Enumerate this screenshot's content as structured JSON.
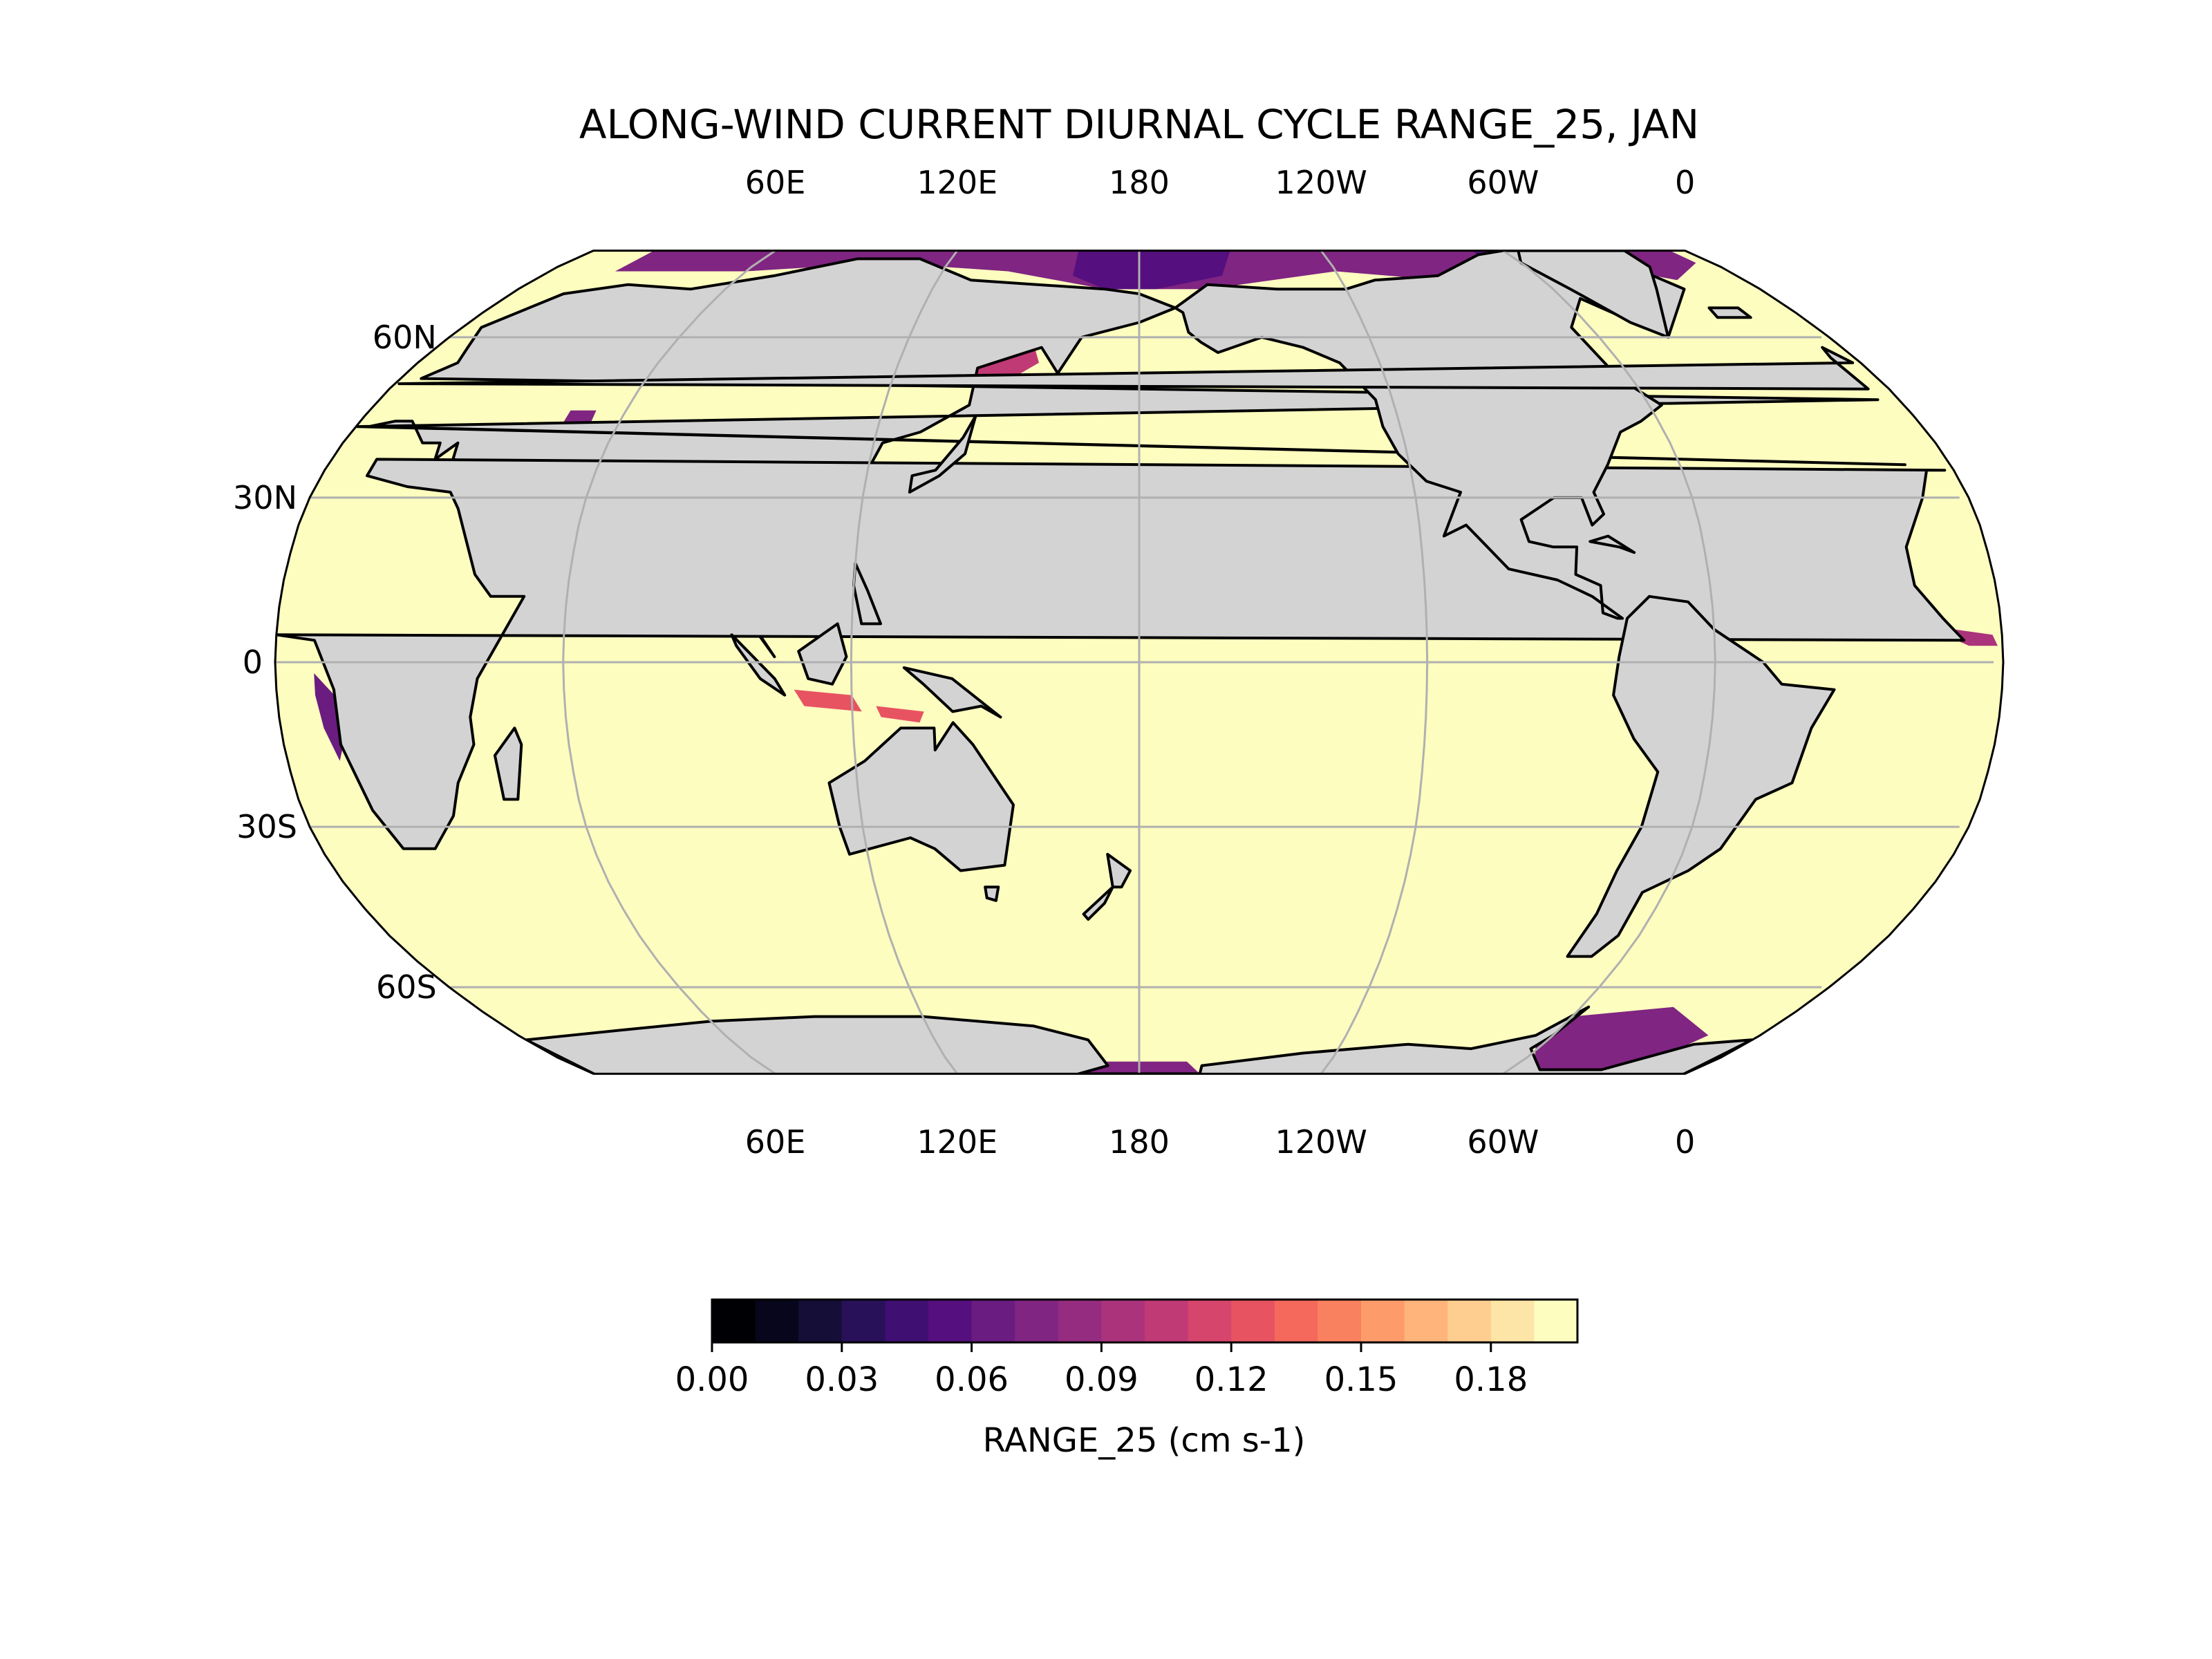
{
  "title": "ALONG-WIND CURRENT DIURNAL CYCLE RANGE_25, JAN",
  "map": {
    "projection": "Robinson",
    "central_longitude": "180",
    "lon_labels_top": [
      "60E",
      "120E",
      "180",
      "120W",
      "60W",
      "0"
    ],
    "lon_labels_bottom": [
      "60E",
      "120E",
      "180",
      "120W",
      "60W",
      "0"
    ],
    "lat_labels": [
      "60N",
      "30N",
      "0",
      "30S",
      "60S"
    ],
    "land_color": "#d3d3d3",
    "gridline_color": "#b0b0b0",
    "coastline_color": "#000000"
  },
  "colorbar": {
    "label": "RANGE_25 (cm s-1)",
    "tick_labels": [
      "0.00",
      "0.03",
      "0.06",
      "0.09",
      "0.12",
      "0.15",
      "0.18"
    ],
    "min": 0.0,
    "max": 0.2,
    "step": 0.01,
    "colormap": "magma",
    "colors": [
      "#000004",
      "#07061c",
      "#150e37",
      "#29115a",
      "#3f0f72",
      "#560f7e",
      "#6a1c81",
      "#802582",
      "#952c80",
      "#ab337c",
      "#c03a76",
      "#d6456c",
      "#e85362",
      "#f4695c",
      "#fa815f",
      "#fd9b6b",
      "#feb47b",
      "#fecd90",
      "#fde5a7",
      "#fcfdbf"
    ]
  },
  "chart_data": {
    "type": "heatmap",
    "title": "ALONG-WIND CURRENT DIURNAL CYCLE RANGE_25, JAN",
    "colorbar_label": "RANGE_25 (cm s-1)",
    "value_range": [
      0.0,
      0.2
    ],
    "background_ocean_value": 0.2,
    "regions_low_values": [
      {
        "region": "Arctic Ocean",
        "approx_value": 0.07
      },
      {
        "region": "Hudson Bay / Canadian Archipelago",
        "approx_value": 0.07
      },
      {
        "region": "Caspian Sea",
        "approx_value": 0.08
      },
      {
        "region": "Ross Sea",
        "approx_value": 0.08
      },
      {
        "region": "Weddell Sea",
        "approx_value": 0.07
      },
      {
        "region": "Gulf of Guinea coast",
        "approx_value": 0.08
      }
    ]
  }
}
